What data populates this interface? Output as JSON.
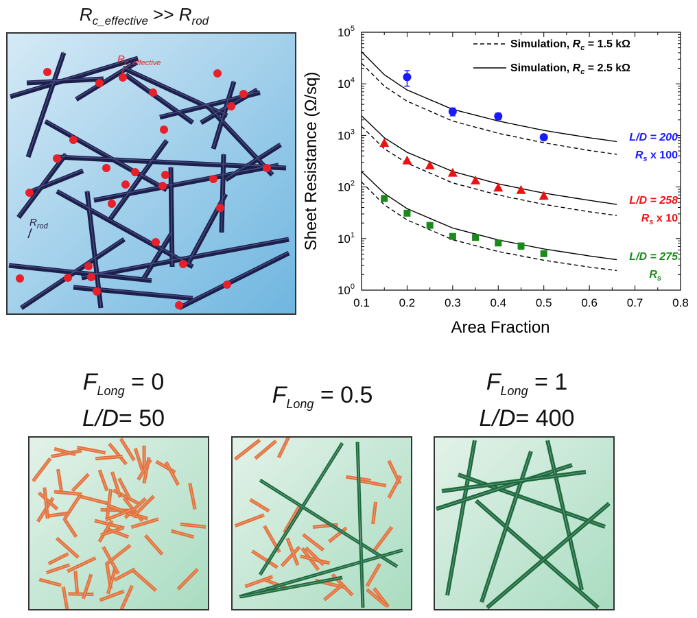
{
  "top_left": {
    "title_R": "R",
    "title_sub1": "c_effective",
    "title_mid": " >> ",
    "title_R2": "R",
    "title_sub2": "rod",
    "label_rc": "R",
    "label_rc_sub": "c_effective",
    "label_rrod": "R",
    "label_rrod_sub": "rod",
    "colors": {
      "background_top": "#d6eaf6",
      "background_bottom": "#6fb6e0",
      "rod": "#1c1f4a",
      "junction": "#e8202a"
    }
  },
  "chart_data": {
    "type": "scatter",
    "xlabel": "Area Fraction",
    "ylabel": "Sheet Resistance (Ω/sq)",
    "xlim": [
      0.1,
      0.8
    ],
    "ylim": [
      1,
      100000
    ],
    "y_scale": "log",
    "x_ticks": [
      "0.1",
      "0.2",
      "0.3",
      "0.4",
      "0.5",
      "0.6",
      "0.7",
      "0.8"
    ],
    "y_ticks": [
      {
        "base": "10",
        "exp": "0"
      },
      {
        "base": "10",
        "exp": "1"
      },
      {
        "base": "10",
        "exp": "2"
      },
      {
        "base": "10",
        "exp": "3"
      },
      {
        "base": "10",
        "exp": "4"
      },
      {
        "base": "10",
        "exp": "5"
      }
    ],
    "legend": [
      {
        "style": "dashed",
        "text": "Simulation, ",
        "var": "R",
        "sub": "c",
        "value": " = 1.5 kΩ"
      },
      {
        "style": "solid",
        "text": "Simulation, ",
        "var": "R",
        "sub": "c",
        "value": " = 2.5 kΩ"
      }
    ],
    "legend_position": "top-right",
    "series": [
      {
        "marker": "circle",
        "color": "#1a1aff",
        "x": [
          0.2,
          0.3,
          0.4,
          0.5
        ],
        "y": [
          13500,
          2900,
          2350,
          920
        ],
        "err": [
          4500,
          500,
          350,
          100
        ],
        "annotation": {
          "line1": "L/D = 200",
          "line2_var": "R",
          "line2_sub": "s",
          "line2_rest": " x 100"
        },
        "sim_dashed": [
          [
            0.1,
            25000
          ],
          [
            0.15,
            9000
          ],
          [
            0.2,
            4600
          ],
          [
            0.3,
            1900
          ],
          [
            0.4,
            1100
          ],
          [
            0.5,
            720
          ],
          [
            0.6,
            510
          ],
          [
            0.66,
            430
          ]
        ],
        "sim_solid": [
          [
            0.1,
            42000
          ],
          [
            0.15,
            15000
          ],
          [
            0.2,
            7600
          ],
          [
            0.3,
            3200
          ],
          [
            0.4,
            1900
          ],
          [
            0.5,
            1250
          ],
          [
            0.6,
            900
          ],
          [
            0.66,
            760
          ]
        ]
      },
      {
        "marker": "triangle",
        "color": "#ee1111",
        "x": [
          0.15,
          0.2,
          0.25,
          0.3,
          0.35,
          0.4,
          0.45,
          0.5
        ],
        "y": [
          720,
          330,
          265,
          190,
          135,
          98,
          88,
          68
        ],
        "err": [
          0,
          0,
          0,
          0,
          0,
          0,
          0,
          0
        ],
        "annotation": {
          "line1": "L/D = 258",
          "line2_var": "R",
          "line2_sub": "s",
          "line2_rest": " x 10"
        },
        "sim_dashed": [
          [
            0.1,
            1500
          ],
          [
            0.15,
            550
          ],
          [
            0.2,
            290
          ],
          [
            0.3,
            120
          ],
          [
            0.4,
            70
          ],
          [
            0.5,
            46
          ],
          [
            0.6,
            33
          ],
          [
            0.66,
            28
          ]
        ],
        "sim_solid": [
          [
            0.1,
            2400
          ],
          [
            0.15,
            900
          ],
          [
            0.2,
            470
          ],
          [
            0.3,
            200
          ],
          [
            0.4,
            115
          ],
          [
            0.5,
            76
          ],
          [
            0.6,
            55
          ],
          [
            0.66,
            46
          ]
        ]
      },
      {
        "marker": "square",
        "color": "#1a8a1a",
        "x": [
          0.15,
          0.2,
          0.25,
          0.3,
          0.35,
          0.4,
          0.45,
          0.5
        ],
        "y": [
          60,
          31,
          18,
          11,
          10.5,
          8.2,
          7.2,
          5.1
        ],
        "err": [
          0,
          0,
          0,
          0,
          0,
          0.8,
          1.0,
          0.3
        ],
        "annotation": {
          "line1": "L/D = 275",
          "line2_var": "R",
          "line2_sub": "s",
          "line2_rest": ""
        },
        "sim_dashed": [
          [
            0.1,
            125
          ],
          [
            0.15,
            45
          ],
          [
            0.2,
            23
          ],
          [
            0.3,
            9.5
          ],
          [
            0.4,
            5.6
          ],
          [
            0.5,
            3.8
          ],
          [
            0.6,
            2.8
          ],
          [
            0.66,
            2.4
          ]
        ],
        "sim_solid": [
          [
            0.1,
            200
          ],
          [
            0.15,
            75
          ],
          [
            0.2,
            38
          ],
          [
            0.3,
            16
          ],
          [
            0.4,
            9.4
          ],
          [
            0.5,
            6.3
          ],
          [
            0.6,
            4.6
          ],
          [
            0.66,
            3.9
          ]
        ]
      }
    ]
  },
  "bottom": {
    "panels": [
      {
        "f_var": "F",
        "f_sub": "Long",
        "f_value": "  = 0",
        "ld_var": "L/D",
        "ld_value": "= 50"
      },
      {
        "f_var": "F",
        "f_sub": "Long",
        "f_value": "  = 0.5",
        "ld_var": "",
        "ld_value": ""
      },
      {
        "f_var": "F",
        "f_sub": "Long",
        "f_value": "  = 1",
        "ld_var": "L/D",
        "ld_value": "= 400"
      }
    ],
    "colors": {
      "short_rod": "#e2703a",
      "long_rod": "#1e6a3f",
      "bg_top": "#e3f2e9",
      "bg_bottom": "#a9dcc1"
    }
  }
}
